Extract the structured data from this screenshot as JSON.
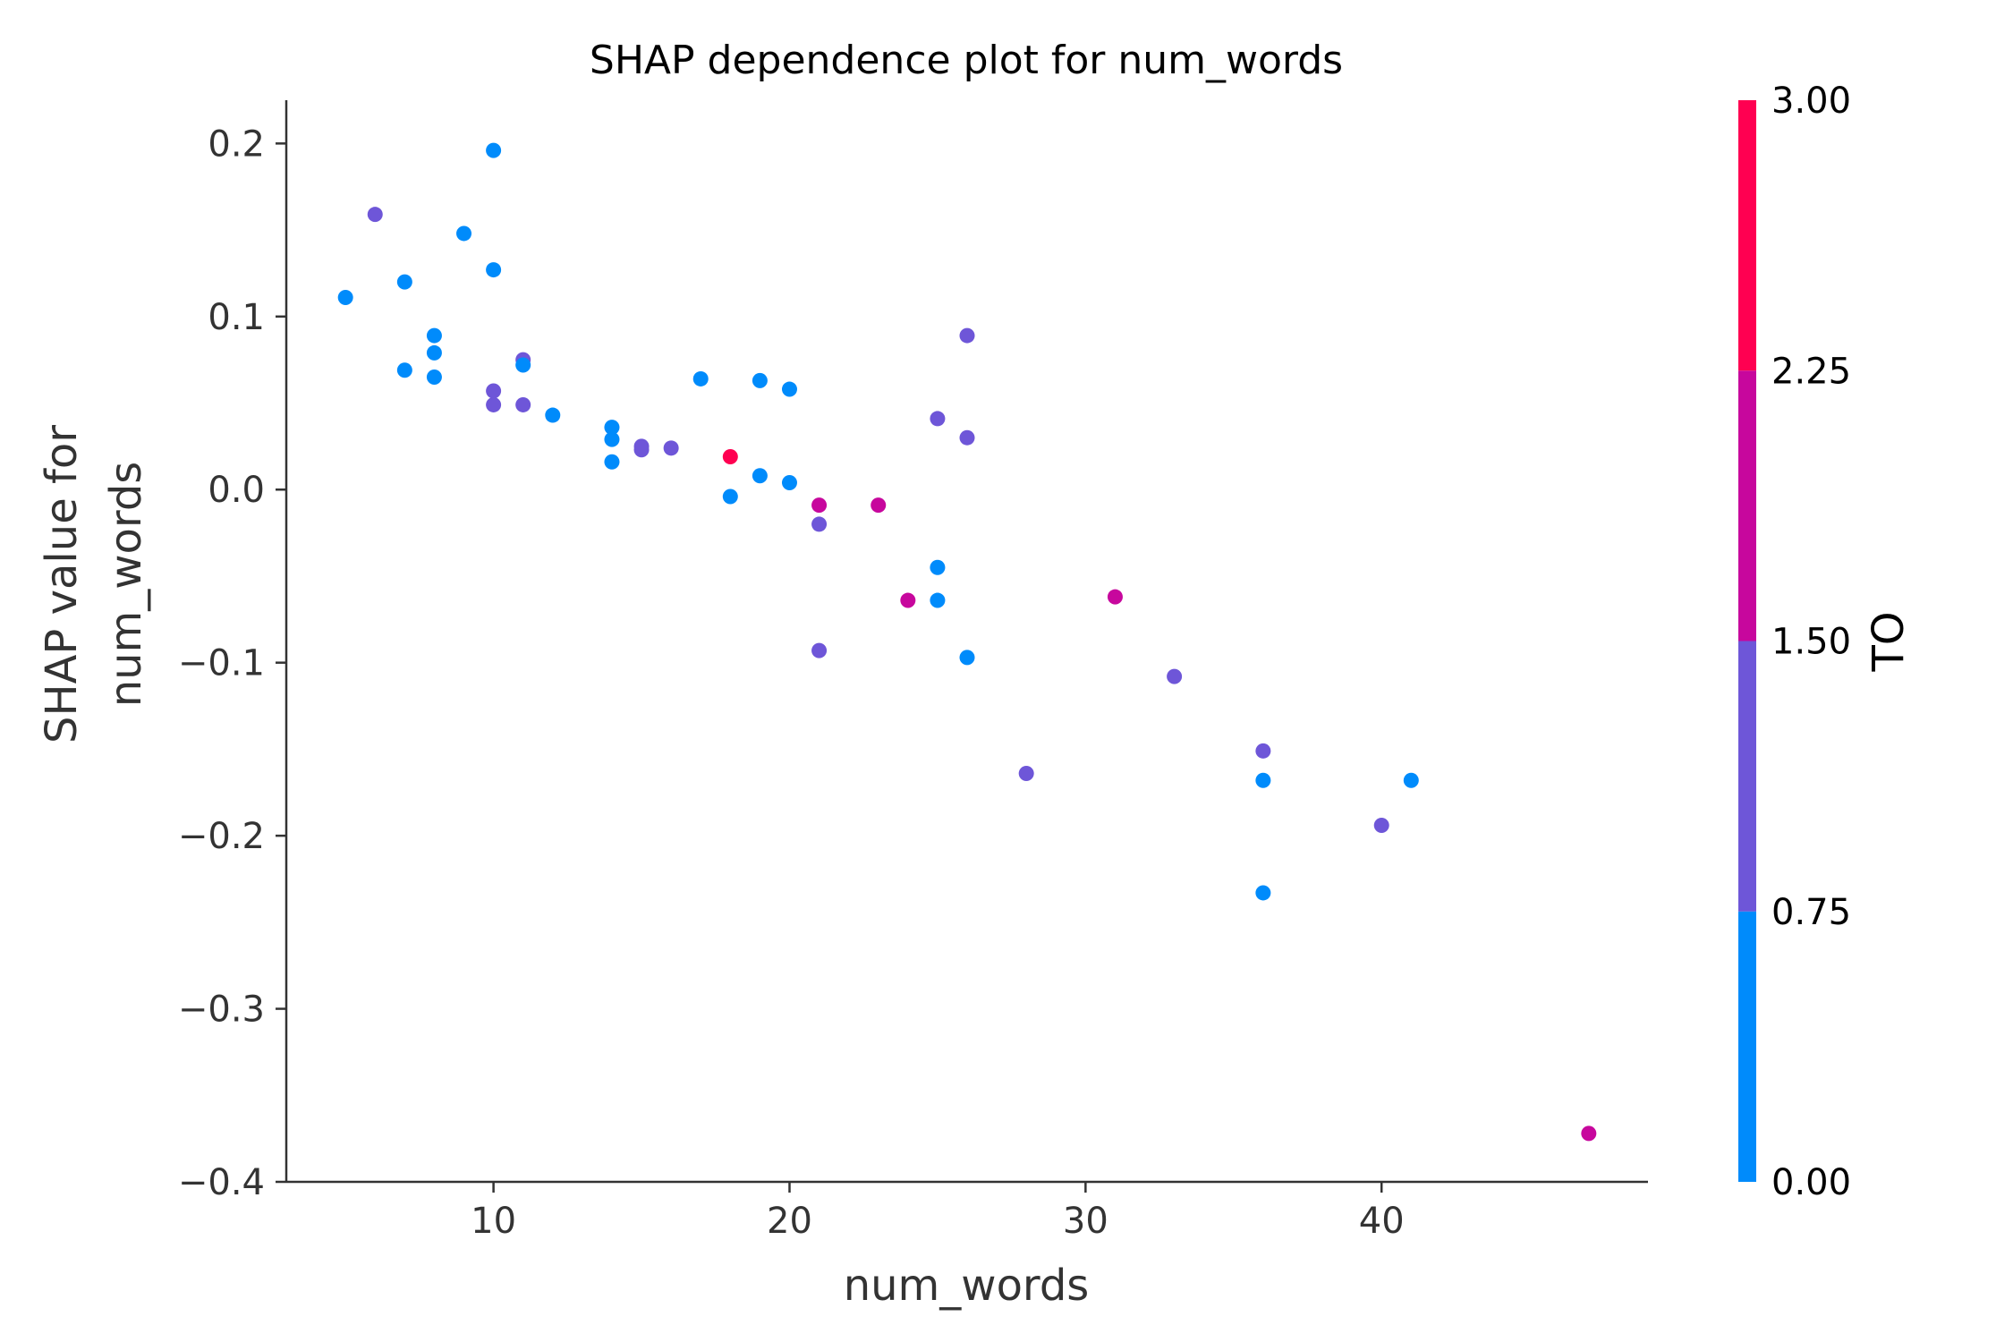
{
  "chart_data": {
    "type": "scatter",
    "title": "SHAP dependence plot for num_words",
    "xlabel": "num_words",
    "ylabel_lines": [
      "SHAP value for",
      "num_words"
    ],
    "xlim": [
      3,
      49
    ],
    "ylim": [
      -0.4,
      0.225
    ],
    "xticks": [
      10,
      20,
      30,
      40
    ],
    "xtick_labels": [
      "10",
      "20",
      "30",
      "40"
    ],
    "yticks": [
      0.2,
      0.1,
      0.0,
      -0.1,
      -0.2,
      -0.3,
      -0.4
    ],
    "ytick_labels": [
      "0.2",
      "0.1",
      "0.0",
      "−0.1",
      "−0.2",
      "−0.3",
      "−0.4"
    ],
    "grid": false,
    "colorbar": {
      "label": "TO",
      "range": [
        0,
        3
      ],
      "ticks": [
        3.0,
        2.25,
        1.5,
        0.75,
        0.0
      ],
      "tick_labels": [
        "3.00",
        "2.25",
        "1.50",
        "0.75",
        "0.00"
      ],
      "colors": [
        "#008bfb",
        "#6e56d8",
        "#c7079d",
        "#ff0051"
      ]
    },
    "points": [
      {
        "x": 5,
        "y": 0.111,
        "c": 0
      },
      {
        "x": 6,
        "y": 0.159,
        "c": 1
      },
      {
        "x": 7,
        "y": 0.12,
        "c": 0
      },
      {
        "x": 7,
        "y": 0.069,
        "c": 0
      },
      {
        "x": 8,
        "y": 0.089,
        "c": 0
      },
      {
        "x": 8,
        "y": 0.079,
        "c": 0
      },
      {
        "x": 8,
        "y": 0.065,
        "c": 0
      },
      {
        "x": 9,
        "y": 0.148,
        "c": 0
      },
      {
        "x": 10,
        "y": 0.196,
        "c": 0
      },
      {
        "x": 10,
        "y": 0.127,
        "c": 0
      },
      {
        "x": 10,
        "y": 0.057,
        "c": 1
      },
      {
        "x": 10,
        "y": 0.049,
        "c": 1
      },
      {
        "x": 11,
        "y": 0.075,
        "c": 1
      },
      {
        "x": 11,
        "y": 0.072,
        "c": 0
      },
      {
        "x": 11,
        "y": 0.049,
        "c": 1
      },
      {
        "x": 12,
        "y": 0.043,
        "c": 0
      },
      {
        "x": 14,
        "y": 0.036,
        "c": 0
      },
      {
        "x": 14,
        "y": 0.029,
        "c": 0
      },
      {
        "x": 14,
        "y": 0.016,
        "c": 0
      },
      {
        "x": 15,
        "y": 0.025,
        "c": 1
      },
      {
        "x": 15,
        "y": 0.023,
        "c": 1
      },
      {
        "x": 16,
        "y": 0.024,
        "c": 1
      },
      {
        "x": 17,
        "y": 0.064,
        "c": 0
      },
      {
        "x": 18,
        "y": 0.019,
        "c": 3
      },
      {
        "x": 18,
        "y": -0.004,
        "c": 0
      },
      {
        "x": 19,
        "y": 0.063,
        "c": 0
      },
      {
        "x": 19,
        "y": 0.008,
        "c": 0
      },
      {
        "x": 20,
        "y": 0.058,
        "c": 0
      },
      {
        "x": 20,
        "y": 0.004,
        "c": 0
      },
      {
        "x": 21,
        "y": -0.009,
        "c": 2
      },
      {
        "x": 21,
        "y": -0.02,
        "c": 1
      },
      {
        "x": 21,
        "y": -0.093,
        "c": 1
      },
      {
        "x": 23,
        "y": -0.009,
        "c": 2
      },
      {
        "x": 24,
        "y": -0.064,
        "c": 2
      },
      {
        "x": 25,
        "y": 0.041,
        "c": 1
      },
      {
        "x": 25,
        "y": -0.045,
        "c": 0
      },
      {
        "x": 25,
        "y": -0.064,
        "c": 0
      },
      {
        "x": 26,
        "y": 0.089,
        "c": 1
      },
      {
        "x": 26,
        "y": 0.03,
        "c": 1
      },
      {
        "x": 26,
        "y": -0.097,
        "c": 0
      },
      {
        "x": 28,
        "y": -0.164,
        "c": 1
      },
      {
        "x": 31,
        "y": -0.062,
        "c": 2
      },
      {
        "x": 33,
        "y": -0.108,
        "c": 1
      },
      {
        "x": 36,
        "y": -0.151,
        "c": 1
      },
      {
        "x": 36,
        "y": -0.168,
        "c": 0
      },
      {
        "x": 36,
        "y": -0.233,
        "c": 0
      },
      {
        "x": 40,
        "y": -0.194,
        "c": 1
      },
      {
        "x": 41,
        "y": -0.168,
        "c": 0
      },
      {
        "x": 47,
        "y": -0.372,
        "c": 2
      }
    ]
  }
}
